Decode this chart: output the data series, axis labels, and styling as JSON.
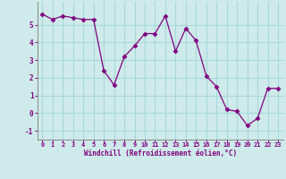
{
  "x": [
    0,
    1,
    2,
    3,
    4,
    5,
    6,
    7,
    8,
    9,
    10,
    11,
    12,
    13,
    14,
    15,
    16,
    17,
    18,
    19,
    20,
    21,
    22,
    23
  ],
  "y": [
    5.6,
    5.3,
    5.5,
    5.4,
    5.3,
    5.3,
    2.4,
    1.6,
    3.2,
    3.8,
    4.5,
    4.5,
    5.5,
    3.5,
    4.8,
    4.1,
    2.1,
    1.5,
    0.2,
    0.1,
    -0.7,
    -0.3,
    1.4,
    1.4
  ],
  "line_color": "#800080",
  "marker": "D",
  "marker_size": 2.5,
  "bg_color": "#ceeaea",
  "grid_color": "#a8d8d8",
  "xlabel": "Windchill (Refroidissement éolien,°C)",
  "xlabel_color": "#800080",
  "tick_color": "#800080",
  "xlim": [
    -0.5,
    23.5
  ],
  "ylim": [
    -1.5,
    6.3
  ],
  "yticks": [
    -1,
    0,
    1,
    2,
    3,
    4,
    5
  ],
  "xticks": [
    0,
    1,
    2,
    3,
    4,
    5,
    6,
    7,
    8,
    9,
    10,
    11,
    12,
    13,
    14,
    15,
    16,
    17,
    18,
    19,
    20,
    21,
    22,
    23
  ]
}
